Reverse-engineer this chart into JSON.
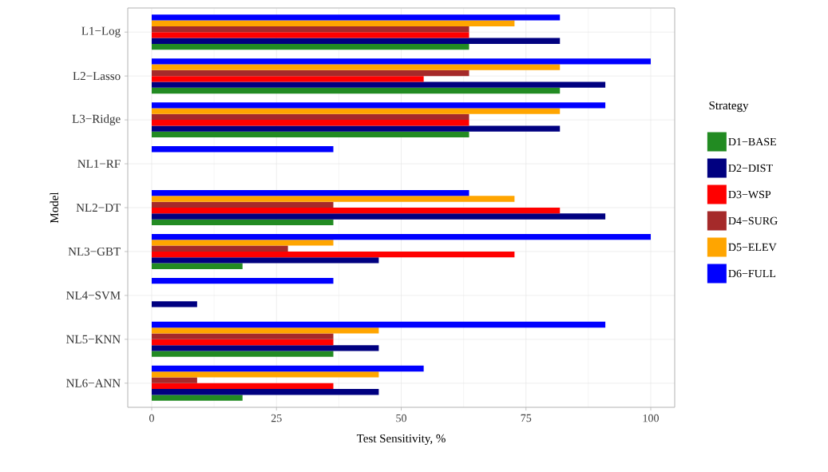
{
  "chart_data": {
    "type": "bar",
    "orientation": "horizontal",
    "xlabel": "Test Sensitivity, %",
    "ylabel": "Model",
    "legend_title": "Strategy",
    "categories": [
      "L1−Log",
      "L2−Lasso",
      "L3−Ridge",
      "NL1−RF",
      "NL2−DT",
      "NL3−GBT",
      "NL4−SVM",
      "NL5−KNN",
      "NL6−ANN"
    ],
    "series": [
      {
        "name": "D1−BASE",
        "color": "#228b22",
        "values": [
          63.6,
          81.8,
          63.6,
          0,
          36.4,
          18.2,
          0,
          36.4,
          18.2
        ]
      },
      {
        "name": "D2−DIST",
        "color": "#000080",
        "values": [
          81.8,
          90.9,
          81.8,
          0,
          90.9,
          45.5,
          9.1,
          45.5,
          45.5
        ]
      },
      {
        "name": "D3−WSP",
        "color": "#ff0000",
        "values": [
          63.6,
          54.5,
          63.6,
          0,
          81.8,
          72.7,
          0,
          36.4,
          36.4
        ]
      },
      {
        "name": "D4−SURG",
        "color": "#a52a2a",
        "values": [
          63.6,
          63.6,
          63.6,
          0,
          36.4,
          27.3,
          0,
          36.4,
          9.1
        ]
      },
      {
        "name": "D5−ELEV",
        "color": "#ffa500",
        "values": [
          72.7,
          81.8,
          81.8,
          0,
          72.7,
          36.4,
          0,
          45.5,
          45.5
        ]
      },
      {
        "name": "D6−FULL",
        "color": "#0000ff",
        "values": [
          81.8,
          100,
          90.9,
          36.4,
          63.6,
          100,
          36.4,
          90.9,
          54.5
        ]
      }
    ],
    "xlim": [
      -4.8,
      104.8
    ],
    "xticks": [
      0,
      25,
      50,
      75,
      100
    ],
    "grid": true,
    "legend": "right"
  }
}
